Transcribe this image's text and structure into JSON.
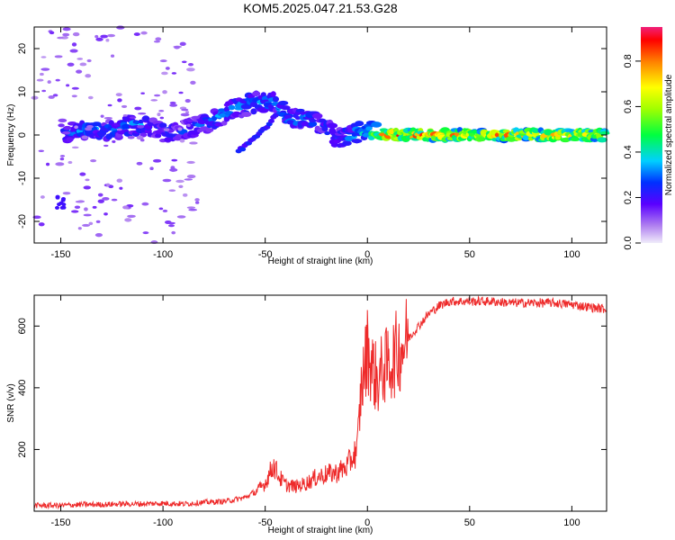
{
  "title": "KOM5.2025.047.21.53.G28",
  "chart_data": [
    {
      "type": "heatmap",
      "xlabel": "Height of straight line (km)",
      "ylabel": "Frequency (Hz)",
      "xlim": [
        -163,
        117
      ],
      "ylim": [
        -25,
        25
      ],
      "xticks": [
        -150,
        -100,
        -50,
        0,
        50,
        100
      ],
      "yticks": [
        -20,
        -10,
        0,
        10,
        20
      ],
      "colorbar": {
        "label": "Normalized spectral amplitude",
        "range": [
          0,
          0.95
        ],
        "ticks": [
          0,
          0.2,
          0.4,
          0.6,
          0.8
        ],
        "tick_labels": [
          "0.0",
          "0.2",
          "0.4",
          "0.6",
          "0.8"
        ]
      },
      "ridge": [
        {
          "x": -145,
          "f": 0.5,
          "a": 0.3
        },
        {
          "x": -135,
          "f": 1.5,
          "a": 0.35
        },
        {
          "x": -125,
          "f": 1.0,
          "a": 0.3
        },
        {
          "x": -112,
          "f": 2.5,
          "a": 0.35
        },
        {
          "x": -102,
          "f": 1.0,
          "a": 0.3
        },
        {
          "x": -92,
          "f": 0.5,
          "a": 0.25
        },
        {
          "x": -80,
          "f": 2.5,
          "a": 0.3
        },
        {
          "x": -72,
          "f": 4.5,
          "a": 0.35
        },
        {
          "x": -62,
          "f": 6.5,
          "a": 0.35
        },
        {
          "x": -52,
          "f": 8.0,
          "a": 0.35
        },
        {
          "x": -45,
          "f": 7.5,
          "a": 0.35
        },
        {
          "x": -38,
          "f": 3.5,
          "a": 0.35
        },
        {
          "x": -30,
          "f": 4.0,
          "a": 0.35
        },
        {
          "x": -22,
          "f": 2.5,
          "a": 0.3
        },
        {
          "x": -15,
          "f": -1.0,
          "a": 0.3
        },
        {
          "x": -8,
          "f": 0.0,
          "a": 0.35
        },
        {
          "x": 0,
          "f": 1.0,
          "a": 0.45
        },
        {
          "x": 10,
          "f": 0.0,
          "a": 0.9
        },
        {
          "x": 25,
          "f": 0.0,
          "a": 0.85
        },
        {
          "x": 40,
          "f": 0.0,
          "a": 0.8
        },
        {
          "x": 55,
          "f": 0.0,
          "a": 0.75
        },
        {
          "x": 70,
          "f": 0.0,
          "a": 0.8
        },
        {
          "x": 85,
          "f": 0.0,
          "a": 0.75
        },
        {
          "x": 100,
          "f": 0.0,
          "a": 0.8
        },
        {
          "x": 115,
          "f": 0.0,
          "a": 0.7
        }
      ]
    },
    {
      "type": "line",
      "xlabel": "Height of straight line (km)",
      "ylabel": "SNR (v/v)",
      "xlim": [
        -163,
        117
      ],
      "ylim": [
        0,
        700
      ],
      "xticks": [
        -150,
        -100,
        -50,
        0,
        50,
        100
      ],
      "yticks": [
        200,
        400,
        600
      ],
      "series": [
        {
          "color": "#ee2a2a",
          "x": [
            -163,
            -150,
            -140,
            -130,
            -120,
            -110,
            -100,
            -90,
            -80,
            -70,
            -60,
            -55,
            -50,
            -46,
            -43,
            -40,
            -35,
            -30,
            -25,
            -20,
            -15,
            -10,
            -5,
            -3,
            -1,
            0,
            2,
            5,
            8,
            10,
            15,
            20,
            25,
            30,
            35,
            40,
            50,
            60,
            70,
            80,
            90,
            100,
            110,
            117
          ],
          "y": [
            15,
            15,
            18,
            18,
            20,
            20,
            22,
            20,
            25,
            28,
            40,
            60,
            90,
            150,
            110,
            85,
            80,
            90,
            110,
            120,
            125,
            145,
            200,
            400,
            480,
            530,
            470,
            420,
            470,
            470,
            520,
            560,
            600,
            640,
            665,
            680,
            680,
            680,
            675,
            675,
            675,
            670,
            660,
            655
          ]
        }
      ]
    }
  ]
}
